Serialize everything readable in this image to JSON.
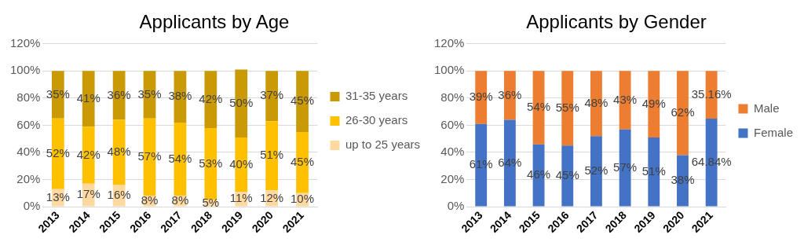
{
  "chart_data": [
    {
      "type": "bar",
      "title": "Applicants by Age",
      "categories": [
        "2013",
        "2014",
        "2015",
        "2016",
        "2017",
        "2018",
        "2019",
        "2020",
        "2021"
      ],
      "stacked": true,
      "grid": "y",
      "legend": "right",
      "ylim": [
        0,
        120
      ],
      "yticks": [
        {
          "value": 0,
          "label": "0%"
        },
        {
          "value": 20,
          "label": "20%"
        },
        {
          "value": 40,
          "label": "40%"
        },
        {
          "value": 60,
          "label": "60%"
        },
        {
          "value": 80,
          "label": "80%"
        },
        {
          "value": 100,
          "label": "100%"
        },
        {
          "value": 120,
          "label": "120%"
        }
      ],
      "series": [
        {
          "name": "up to 25 years",
          "color": "#ffd9a0",
          "values": [
            13,
            17,
            16,
            8,
            8,
            5,
            11,
            12,
            10
          ],
          "value_labels": [
            "13%",
            "17%",
            "16%",
            "8%",
            "8%",
            "5%",
            "11%",
            "12%",
            "10%"
          ]
        },
        {
          "name": "26-30 years",
          "color": "#ffc000",
          "values": [
            52,
            42,
            48,
            57,
            54,
            53,
            40,
            51,
            45
          ],
          "value_labels": [
            "52%",
            "42%",
            "48%",
            "57%",
            "54%",
            "53%",
            "40%",
            "51%",
            "45%"
          ]
        },
        {
          "name": "31-35 years",
          "color": "#c99a06",
          "values": [
            35,
            41,
            36,
            35,
            38,
            42,
            50,
            37,
            45
          ],
          "value_labels": [
            "35%",
            "41%",
            "36%",
            "35%",
            "38%",
            "42%",
            "50%",
            "37%",
            "45%"
          ]
        }
      ]
    },
    {
      "type": "bar",
      "title": "Applicants by Gender",
      "categories": [
        "2013",
        "2014",
        "2015",
        "2016",
        "2017",
        "2018",
        "2019",
        "2020",
        "2021"
      ],
      "stacked": true,
      "grid": "y",
      "legend": "right",
      "ylim": [
        0,
        120
      ],
      "yticks": [
        {
          "value": 0,
          "label": "0%"
        },
        {
          "value": 20,
          "label": "20%"
        },
        {
          "value": 40,
          "label": "40%"
        },
        {
          "value": 60,
          "label": "60%"
        },
        {
          "value": 80,
          "label": "80%"
        },
        {
          "value": 100,
          "label": "100%"
        },
        {
          "value": 120,
          "label": "120%"
        }
      ],
      "series": [
        {
          "name": "Female",
          "color": "#4472c4",
          "values": [
            61,
            64,
            46,
            45,
            52,
            57,
            51,
            38,
            64.84
          ],
          "value_labels": [
            "61%",
            "64%",
            "46%",
            "45%",
            "52%",
            "57%",
            "51%",
            "38%",
            "64.84%"
          ]
        },
        {
          "name": "Male",
          "color": "#ed7d31",
          "values": [
            39,
            36,
            54,
            55,
            48,
            43,
            49,
            62,
            35.16
          ],
          "value_labels": [
            "39%",
            "36%",
            "54%",
            "55%",
            "48%",
            "43%",
            "49%",
            "62%",
            "35.16%"
          ]
        }
      ]
    }
  ]
}
